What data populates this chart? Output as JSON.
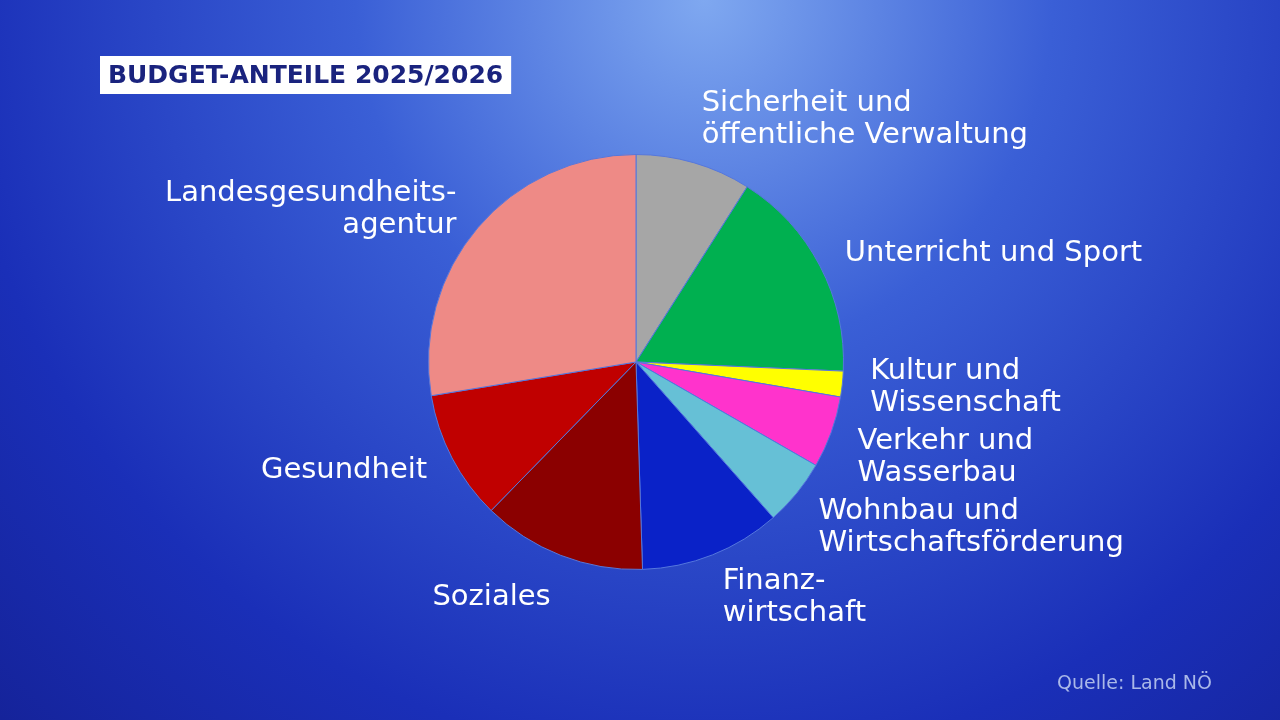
{
  "chart_data": {
    "type": "pie",
    "title": "BUDGET-ANTEILE 2025/2026",
    "categories": [
      "Sicherheit und\nöffentliche Verwaltung",
      "Unterricht und Sport",
      "Kultur und\nWissenschaft",
      "Verkehr und\nWasserbau",
      "Wohnbau und\nWirtschaftsförderung",
      "Finanz-\nwirtschaft",
      "Soziales",
      "Gesundheit",
      "Landesgesundheits-\nagentur"
    ],
    "values": [
      9,
      16.7,
      2,
      5.6,
      5.2,
      11,
      12.8,
      10.1,
      27.6
    ],
    "colors": [
      "#a6a6a6",
      "#00b050",
      "#ffff00",
      "#ff33cc",
      "#66c0d6",
      "#0a22c8",
      "#8b0000",
      "#c00000",
      "#ee8a86"
    ],
    "legend": false,
    "annotations": [
      "Quelle: Land NÖ"
    ]
  }
}
